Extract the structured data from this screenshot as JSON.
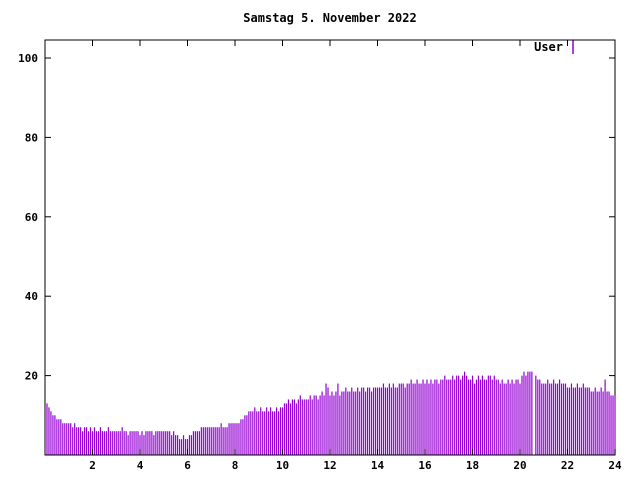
{
  "chart_data": {
    "type": "bar",
    "title": "Samstag 5. November 2022",
    "xlabel": "",
    "ylabel": "",
    "x_range": [
      0,
      24
    ],
    "y_range": [
      0,
      104.5
    ],
    "x_ticks": [
      2,
      4,
      6,
      8,
      10,
      12,
      14,
      16,
      18,
      20,
      22,
      24
    ],
    "y_ticks": [
      20,
      40,
      60,
      80,
      100
    ],
    "grid": false,
    "legend_position": "top-right",
    "samples_per_hour": 12,
    "series": [
      {
        "name": "User",
        "color": "#9400d3",
        "values": [
          13,
          12,
          11,
          10,
          10,
          9,
          9,
          9,
          8,
          8,
          8,
          8,
          8,
          7,
          8,
          7,
          7,
          7,
          6,
          7,
          7,
          6,
          7,
          6,
          7,
          6,
          6,
          7,
          6,
          6,
          6,
          7,
          6,
          6,
          6,
          6,
          6,
          6,
          7,
          6,
          6,
          5,
          6,
          6,
          6,
          6,
          6,
          5,
          6,
          5,
          6,
          6,
          6,
          6,
          5,
          6,
          6,
          6,
          6,
          6,
          6,
          6,
          6,
          5,
          6,
          5,
          5,
          4,
          4,
          5,
          4,
          4,
          5,
          5,
          6,
          6,
          6,
          6,
          7,
          7,
          7,
          7,
          7,
          7,
          7,
          7,
          7,
          7,
          8,
          7,
          7,
          7,
          8,
          8,
          8,
          8,
          8,
          8,
          9,
          9,
          10,
          10,
          11,
          11,
          11,
          12,
          11,
          11,
          12,
          11,
          11,
          12,
          11,
          12,
          11,
          11,
          12,
          11,
          12,
          12,
          13,
          13,
          14,
          13,
          14,
          14,
          13,
          14,
          15,
          14,
          14,
          14,
          14,
          15,
          14,
          15,
          15,
          14,
          15,
          16,
          15,
          18,
          17,
          15,
          16,
          15,
          16,
          18,
          15,
          16,
          16,
          17,
          16,
          16,
          17,
          16,
          16,
          17,
          16,
          17,
          17,
          16,
          17,
          17,
          16,
          17,
          17,
          17,
          17,
          17,
          18,
          17,
          17,
          18,
          17,
          18,
          17,
          17,
          18,
          18,
          18,
          17,
          18,
          18,
          19,
          18,
          18,
          19,
          18,
          18,
          19,
          18,
          19,
          18,
          19,
          18,
          19,
          19,
          18,
          19,
          19,
          20,
          19,
          19,
          19,
          20,
          19,
          20,
          20,
          19,
          20,
          21,
          20,
          19,
          19,
          20,
          18,
          19,
          20,
          19,
          20,
          19,
          19,
          20,
          20,
          19,
          20,
          19,
          19,
          18,
          19,
          18,
          18,
          19,
          18,
          19,
          18,
          19,
          19,
          18,
          20,
          21,
          20,
          21,
          21,
          21,
          0,
          20,
          19,
          19,
          18,
          18,
          18,
          19,
          18,
          18,
          19,
          18,
          18,
          19,
          18,
          18,
          18,
          17,
          17,
          18,
          17,
          17,
          18,
          17,
          17,
          18,
          17,
          17,
          17,
          16,
          16,
          17,
          16,
          16,
          17,
          16,
          19,
          16,
          16,
          15,
          15,
          15
        ]
      }
    ]
  },
  "colors": {
    "background": "#ffffff",
    "axis": "#000000",
    "bar": "#9400d3"
  }
}
